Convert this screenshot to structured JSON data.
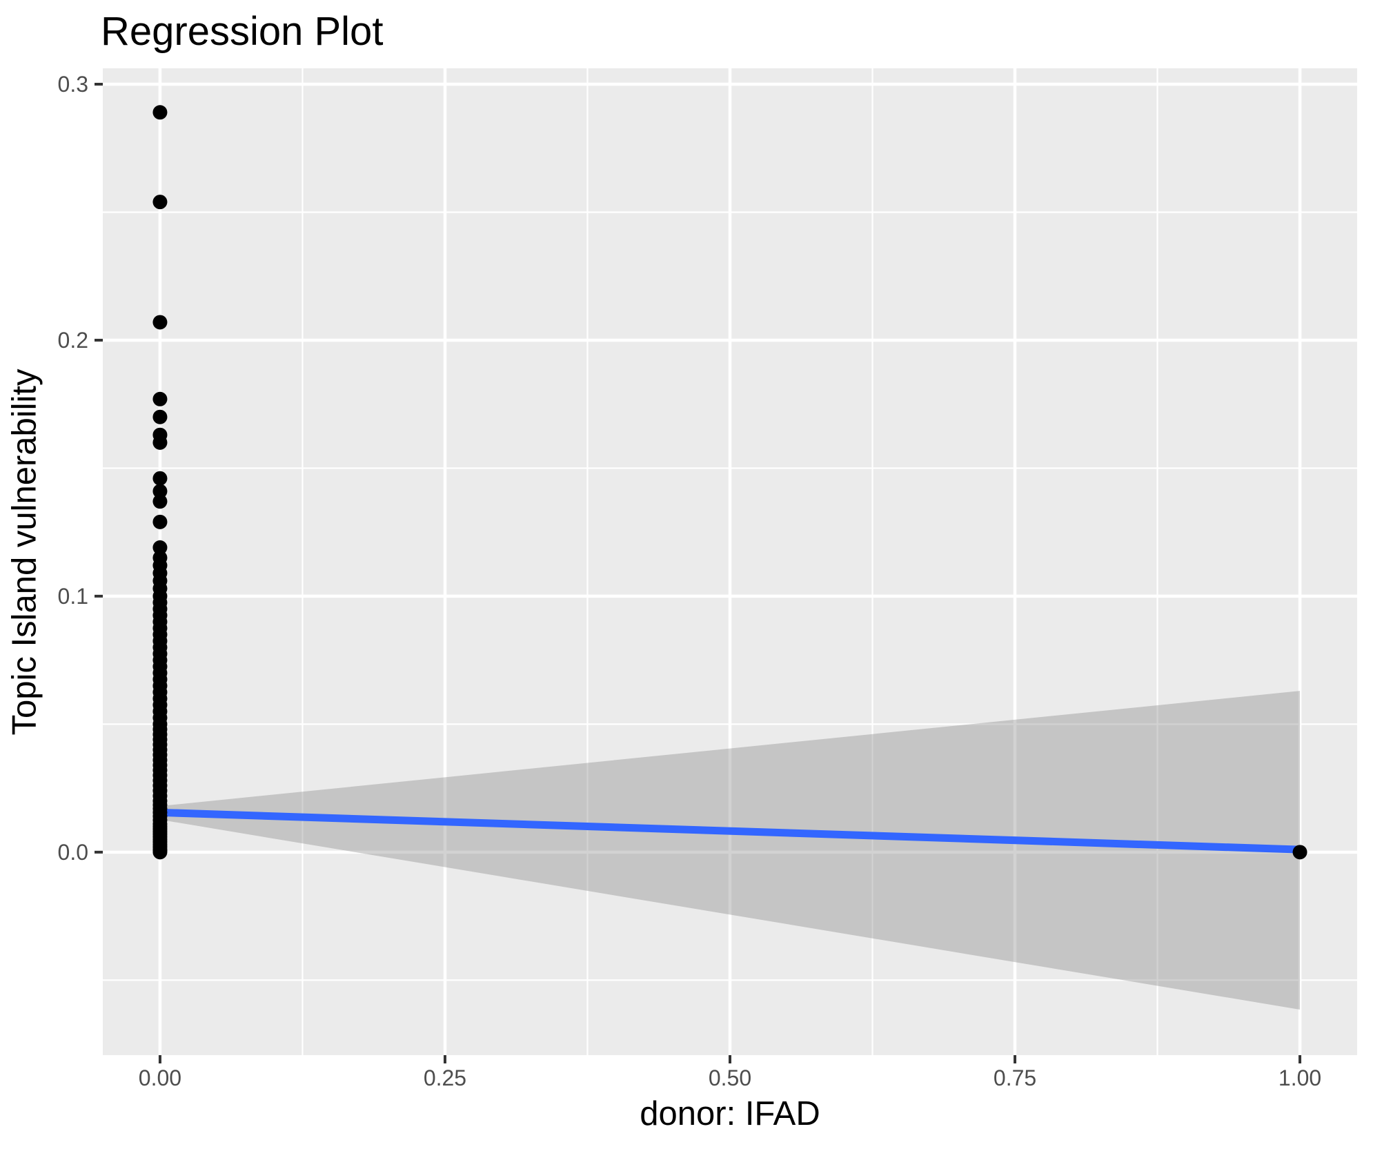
{
  "chart_data": {
    "type": "scatter",
    "title": "Regression Plot",
    "xlabel": "donor: IFAD",
    "ylabel": "Topic Island vulnerability",
    "xlim": [
      -0.0502,
      1.0502
    ],
    "ylim": [
      -0.0793,
      0.3062
    ],
    "grid": {
      "major": true,
      "minor": true
    },
    "legend": "none",
    "x_ticks": {
      "values": [
        0.0,
        0.25,
        0.5,
        0.75,
        1.0
      ],
      "labels": [
        "0.00",
        "0.25",
        "0.50",
        "0.75",
        "1.00"
      ]
    },
    "y_ticks": {
      "values": [
        0.0,
        0.1,
        0.2,
        0.3
      ],
      "labels": [
        "0.0",
        "0.1",
        "0.2",
        "0.3"
      ]
    },
    "points": [
      {
        "x": 0,
        "y": [
          0.289,
          0.254,
          0.207,
          0.177,
          0.17,
          0.163,
          0.16,
          0.146,
          0.141,
          0.137,
          0.129,
          0.119,
          0.115,
          0.112,
          0.109,
          0.106,
          0.103,
          0.1,
          0.0975,
          0.095,
          0.0925,
          0.09,
          0.0875,
          0.085,
          0.0825,
          0.08,
          0.0775,
          0.075,
          0.0725,
          0.07,
          0.0675,
          0.065,
          0.0625,
          0.06,
          0.0575,
          0.055,
          0.0525,
          0.05,
          0.048,
          0.046,
          0.044,
          0.042,
          0.04,
          0.038,
          0.036,
          0.034,
          0.032,
          0.03,
          0.028,
          0.026,
          0.024,
          0.022,
          0.02,
          0.0185,
          0.017,
          0.0155,
          0.014,
          0.0125,
          0.011,
          0.01,
          0.009,
          0.008,
          0.007,
          0.006,
          0.005,
          0.004,
          0.003,
          0.002,
          0.001,
          0.0005,
          0.0
        ]
      },
      {
        "x": 1,
        "y": [
          0.0
        ]
      }
    ],
    "regression_line": {
      "x": [
        0,
        1
      ],
      "y": [
        0.0155,
        0.001
      ]
    },
    "confidence_band": {
      "x": [
        0,
        1
      ],
      "upper": [
        0.018,
        0.063
      ],
      "lower": [
        0.0127,
        -0.0615
      ]
    },
    "colors": {
      "background": "#FFFFFF",
      "panel_bg": "#EBEBEB",
      "grid": "#FFFFFF",
      "point": "#000000",
      "line": "#3366FF",
      "band": "rgba(125,125,125,0.35)",
      "tick_mark": "#333333",
      "tick_label": "#4D4D4D",
      "text": "#000000"
    },
    "point_radius": 10.5,
    "line_width": 11
  }
}
